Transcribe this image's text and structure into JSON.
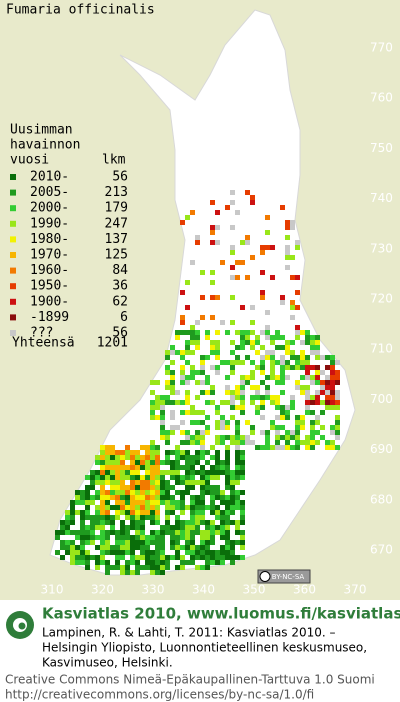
{
  "title": "Fumaria officinalis",
  "legend": {
    "heading": [
      "Uusimman",
      "havainnon",
      "vuosi"
    ],
    "count_heading": "lkm",
    "rows": [
      {
        "label": "2010-",
        "count": 56,
        "color": "#0a6e0a"
      },
      {
        "label": "2005-",
        "count": 213,
        "color": "#1f9a1f"
      },
      {
        "label": "2000-",
        "count": 179,
        "color": "#33cc33"
      },
      {
        "label": "1990-",
        "count": 247,
        "color": "#99e619"
      },
      {
        "label": "1980-",
        "count": 137,
        "color": "#f2f200"
      },
      {
        "label": "1970-",
        "count": 125,
        "color": "#f7b500"
      },
      {
        "label": "1960-",
        "count": 84,
        "color": "#f27a00"
      },
      {
        "label": "1950-",
        "count": 36,
        "color": "#e63c00"
      },
      {
        "label": "1900-",
        "count": 62,
        "color": "#cc1111"
      },
      {
        "label": "-1899",
        "count": 6,
        "color": "#8a0d0d"
      },
      {
        "label": "???",
        "count": 56,
        "color": "#c8c8c8"
      }
    ],
    "total_label": "Yhteensä",
    "total": 1201
  },
  "y_ticks": [
    770,
    760,
    750,
    740,
    730,
    720,
    710,
    700,
    690,
    680,
    670
  ],
  "x_ticks": [
    310,
    320,
    330,
    340,
    350,
    360,
    370
  ],
  "license_badge": "BY-NC-SA",
  "footer": {
    "site": "Kasviatlas 2010, www.luomus.fi/kasviatlas",
    "citation": [
      "Lampinen, R. & Lahti, T. 2011: Kasviatlas 2010. –",
      "Helsingin Yliopisto, Luonnontieteellinen keskusmuseo,",
      "Kasvimuseo, Helsinki."
    ],
    "license": [
      "Creative Commons Nimeä-Epäkaupallinen-Tarttuva 1.0 Suomi",
      "http://creativecommons.org/licenses/by-nc-sa/1.0/fi"
    ]
  }
}
